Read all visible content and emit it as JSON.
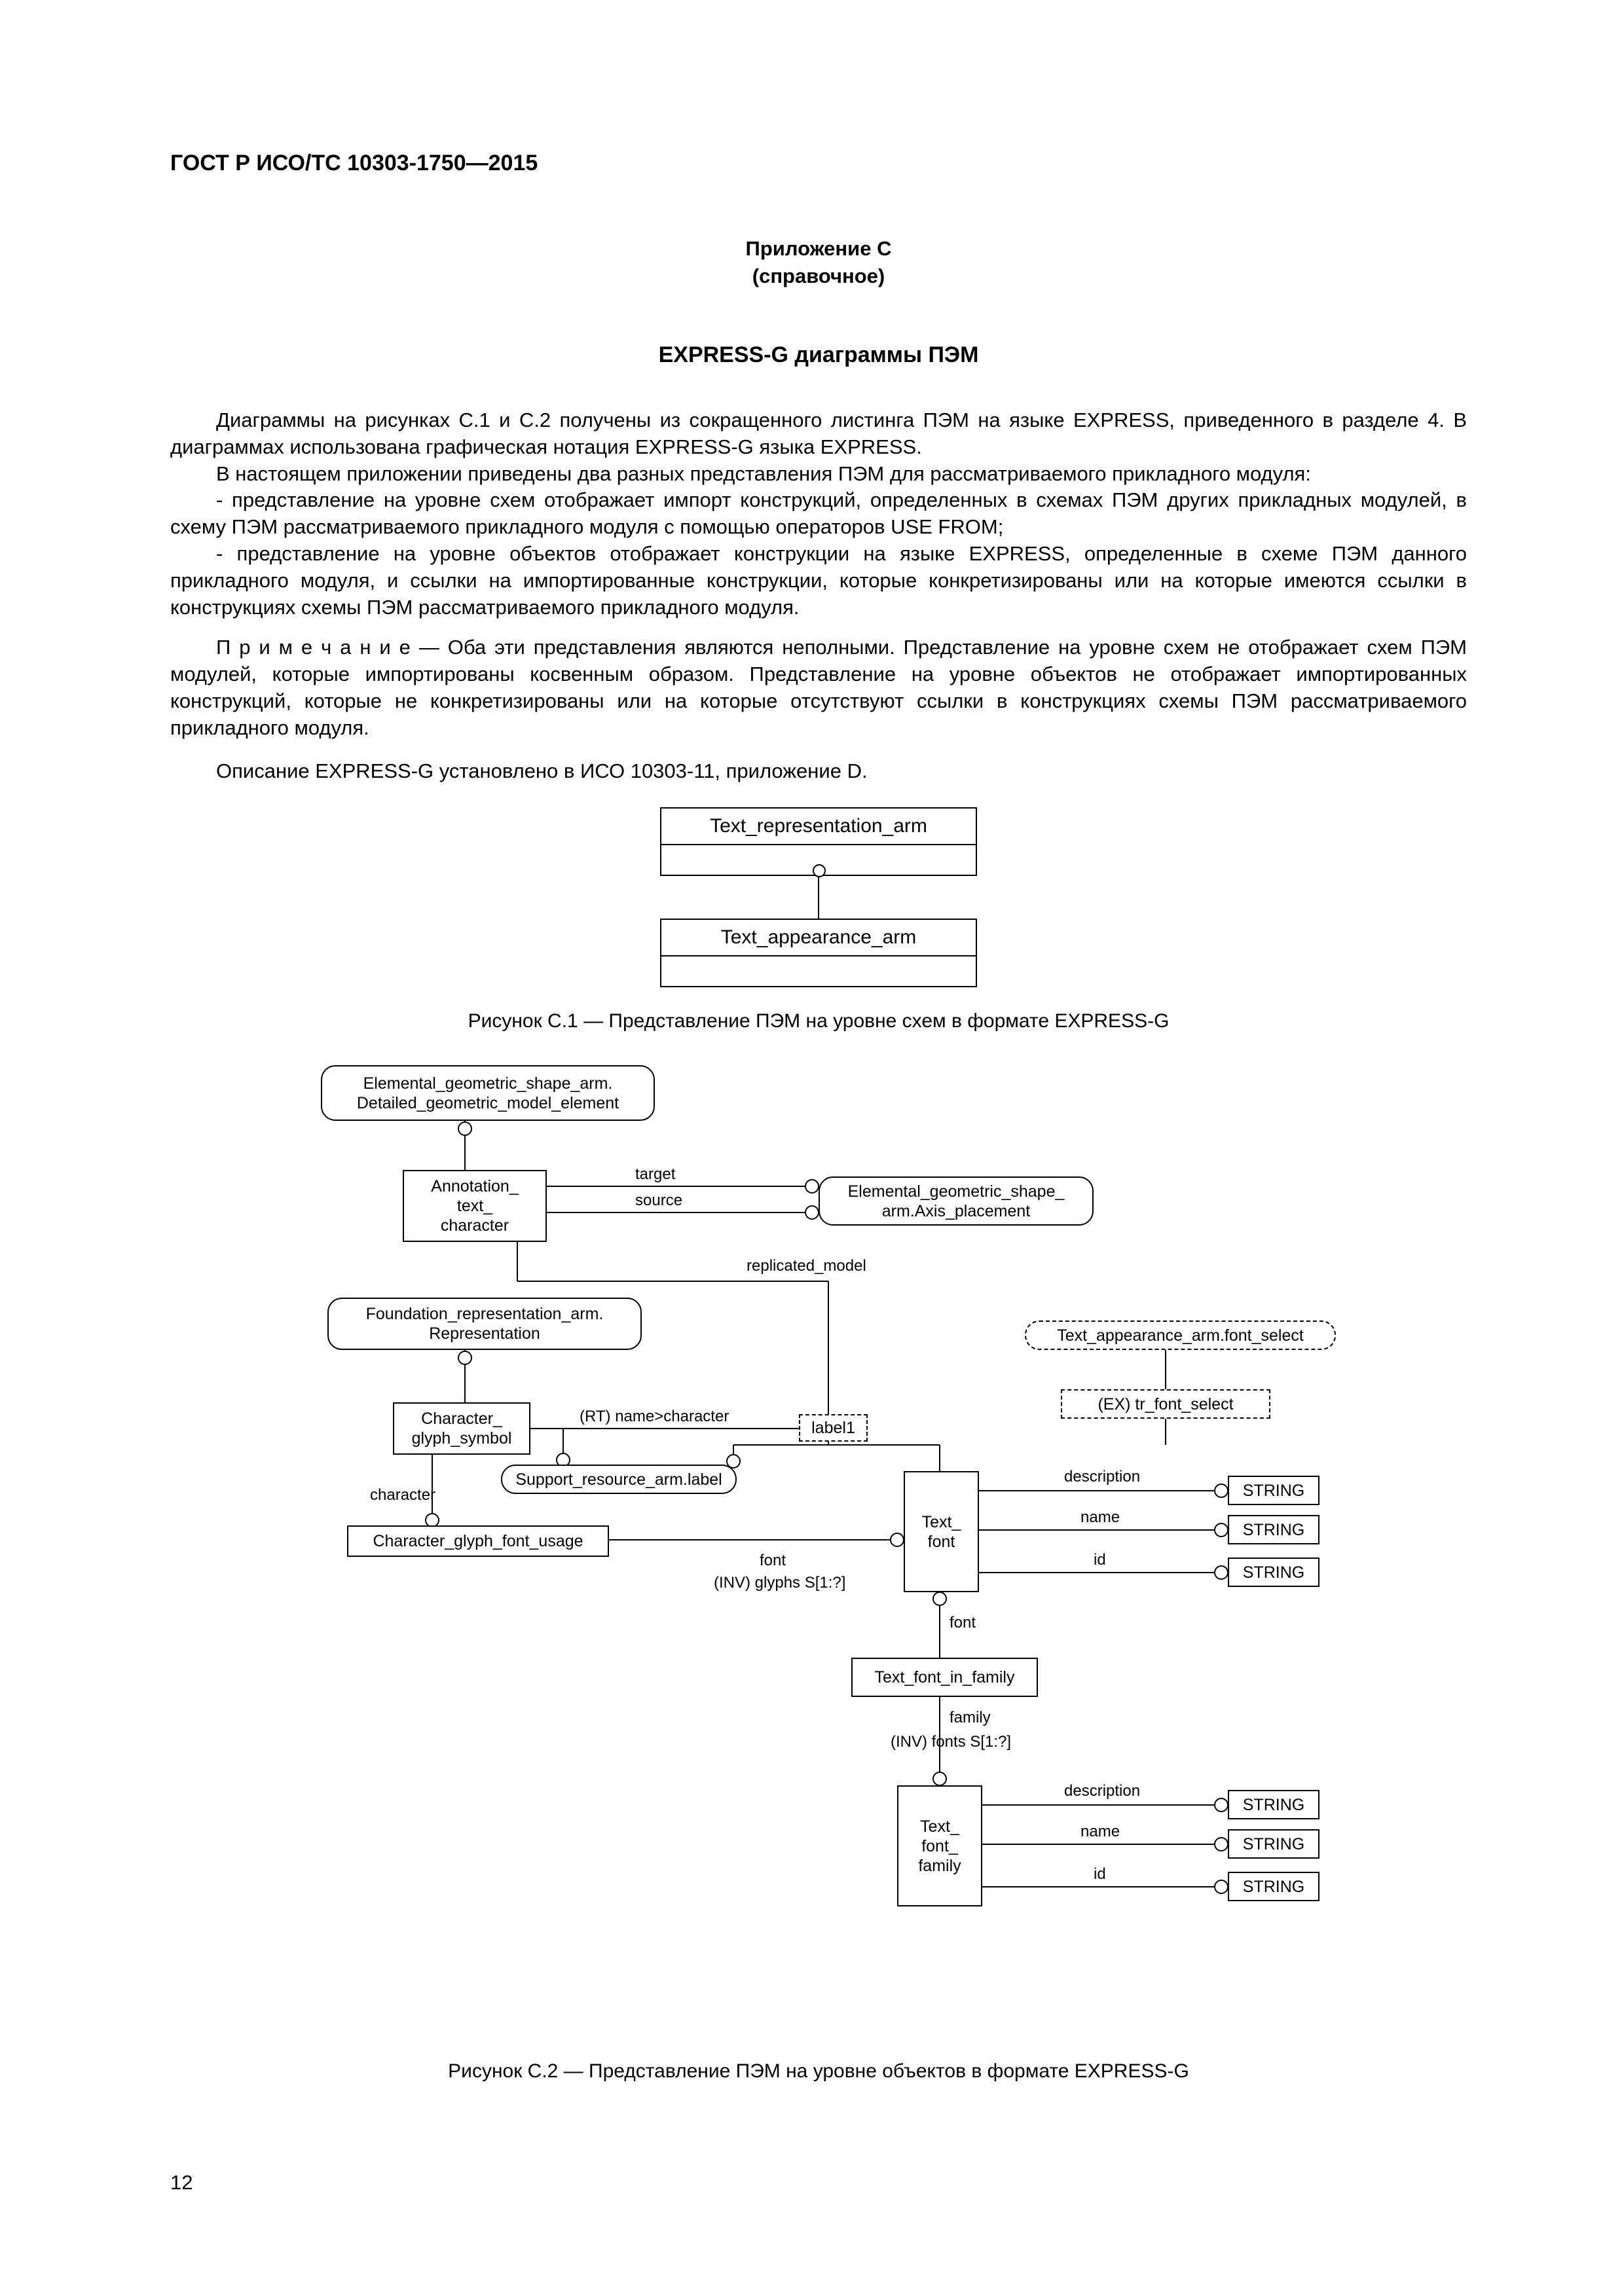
{
  "document": {
    "header": "ГОСТ Р ИСО/ТС 10303-1750—2015",
    "page_number": "12",
    "appendix": {
      "line1": "Приложение C",
      "line2": "(справочное)"
    },
    "section_title": "EXPRESS-G диаграммы ПЭМ",
    "paragraphs": {
      "p1": "Диаграммы на рисунках C.1 и C.2 получены из сокращенного листинга ПЭМ на языке EXPRESS, приведенного в разделе 4. В диаграммах использована графическая нотация EXPRESS-G языка EXPRESS.",
      "p2": "В настоящем приложении приведены два разных представления ПЭМ для рассматриваемого прикладного модуля:",
      "p3": "-  представление на уровне схем отображает импорт конструкций, определенных в схемах ПЭМ других прикладных модулей, в схему ПЭМ рассматриваемого прикладного модуля с помощью операторов USE FROM;",
      "p4": "-  представление на уровне объектов отображает конструкции на языке EXPRESS, определенные в схеме ПЭМ данного прикладного модуля, и ссылки на импортированные конструкции, которые конкретизированы или на которые имеются ссылки в конструкциях схемы ПЭМ рассматриваемого прикладного модуля.",
      "note": "П р и м е ч а н и е  —  Оба эти представления являются неполными. Представление на уровне схем не отображает схем ПЭМ модулей, которые импортированы косвенным образом. Представление на уровне объектов не отображает импортированных конструкций, которые не конкретизированы или на которые отсутствуют ссылки в конструкциях схемы ПЭМ рассматриваемого прикладного модуля.",
      "p5": "Описание EXPRESS-G установлено в ИСО 10303-11, приложение D."
    },
    "figure_c1": {
      "schema_top": "Text_representation_arm",
      "schema_bottom": "Text_appearance_arm",
      "caption": "Рисунок C.1 — Представление ПЭМ на уровне схем в формате EXPRESS-G"
    },
    "figure_c2": {
      "caption": "Рисунок C.2 — Представление ПЭМ на уровне объектов в формате EXPRESS-G",
      "nodes": {
        "egsa_dgme": "Elemental_geometric_shape_arm.\nDetailed_geometric_model_element",
        "annotation": "Annotation_\ntext_\ncharacter",
        "axis": "Elemental_geometric_shape_\narm.Axis_placement",
        "foundation": "Foundation_representation_arm.\nRepresentation",
        "font_select": "Text_appearance_arm.font_select",
        "ex_font_select": "(EX) tr_font_select",
        "cgs": "Character_\nglyph_symbol",
        "sral": "Support_resource_arm.label",
        "cgfu": "Character_glyph_font_usage",
        "text_font": "Text_\nfont",
        "tfif": "Text_font_in_family",
        "tff": "Text_\nfont_\nfamily",
        "string": "STRING"
      },
      "edge_labels": {
        "target": "target",
        "source": "source",
        "replicated_model": "replicated_model",
        "rt_name": "(RT) name>character",
        "label1": "label1",
        "character": "character",
        "font": "font",
        "inv_glyphs": "(INV) glyphs S[1:?]",
        "font2": "font",
        "family": "family",
        "inv_fonts": "(INV) fonts S[1:?]",
        "description": "description",
        "name": "name",
        "id": "id"
      },
      "styling": {
        "stroke_color": "#000000",
        "background_color": "#ffffff",
        "font_family": "Arial",
        "node_font_size": 25,
        "edge_label_font_size": 24,
        "line_width": 2,
        "rounded_radius": 22,
        "dashed_pattern": "8 6"
      }
    }
  }
}
